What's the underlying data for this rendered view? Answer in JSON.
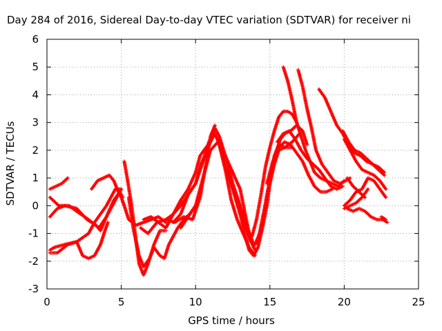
{
  "chart_data": {
    "type": "scatter",
    "title": "Day 284 of 2016, Sidereal Day-to-day VTEC variation (SDTVAR) for receiver ni",
    "xlabel": "GPS time / hours",
    "ylabel": "SDTVAR / TECUs",
    "xlim": [
      0,
      25
    ],
    "ylim": [
      -3,
      6
    ],
    "xticks": [
      "0",
      "5",
      "10",
      "15",
      "20",
      "25"
    ],
    "yticks": [
      "-3",
      "-2",
      "-1",
      "0",
      "1",
      "2",
      "3",
      "4",
      "5",
      "6"
    ],
    "grid": true,
    "legend": "none",
    "marker": "+",
    "color": "#ff0000",
    "series": [
      {
        "x": [
          0.2,
          0.6,
          1.0,
          1.4
        ],
        "y": [
          0.6,
          0.7,
          0.8,
          1.0
        ]
      },
      {
        "x": [
          0.2,
          0.8,
          1.5,
          2.0,
          2.8,
          3.5,
          4.0,
          4.5,
          4.9,
          5.1
        ],
        "y": [
          0.3,
          0.0,
          0.0,
          -0.2,
          -0.5,
          -0.8,
          -0.4,
          0.2,
          0.5,
          0.3
        ]
      },
      {
        "x": [
          0.2,
          0.7,
          1.2,
          2.0,
          2.7,
          3.3,
          3.6,
          4.0,
          4.3,
          4.7,
          5.0
        ],
        "y": [
          -0.4,
          -0.1,
          0.0,
          -0.1,
          -0.5,
          -0.7,
          -0.9,
          -0.4,
          -0.1,
          0.3,
          0.6
        ]
      },
      {
        "x": [
          0.2,
          0.5,
          1.2,
          2.0,
          2.8,
          3.2,
          3.6,
          4.0,
          4.3,
          4.6,
          5.0
        ],
        "y": [
          -1.6,
          -1.5,
          -1.4,
          -1.3,
          -1.0,
          -0.6,
          -0.3,
          0.0,
          0.3,
          0.6,
          0.6
        ]
      },
      {
        "x": [
          0.2,
          0.7,
          1.4,
          2.0,
          2.4,
          2.8,
          3.2,
          3.6,
          3.9,
          4.1
        ],
        "y": [
          -1.7,
          -1.7,
          -1.4,
          -1.3,
          -1.8,
          -1.9,
          -1.8,
          -1.4,
          -0.9,
          -0.6
        ]
      },
      {
        "x": [
          3.0,
          3.4,
          4.2,
          4.5,
          4.8,
          5.0,
          5.2,
          5.5,
          6.0,
          6.5,
          7.0,
          7.5,
          8.0
        ],
        "y": [
          0.6,
          0.9,
          1.1,
          0.9,
          0.5,
          0.3,
          0.0,
          -0.5,
          -0.7,
          -0.6,
          -0.5,
          -0.4,
          -0.6
        ]
      },
      {
        "x": [
          5.2,
          5.4,
          5.7,
          6.0,
          6.2,
          6.5,
          6.8,
          7.2,
          7.6,
          8.0
        ],
        "y": [
          1.6,
          1.0,
          0.0,
          -1.3,
          -2.1,
          -2.5,
          -2.1,
          -1.4,
          -0.9,
          -0.9
        ]
      },
      {
        "x": [
          5.5,
          5.8,
          6.2,
          6.5,
          6.9,
          7.2,
          7.6,
          7.9,
          8.2,
          8.8,
          9.2,
          9.6,
          10.0
        ],
        "y": [
          0.3,
          -0.8,
          -1.8,
          -2.2,
          -1.9,
          -1.5,
          -1.8,
          -1.9,
          -1.4,
          -0.8,
          -0.5,
          -0.3,
          0.0
        ]
      },
      {
        "x": [
          6.3,
          6.8,
          7.4,
          8.0,
          8.6,
          9.2,
          9.8,
          10.3,
          10.7,
          11.0,
          11.3
        ],
        "y": [
          -0.8,
          -1.0,
          -0.6,
          -0.5,
          -0.6,
          -0.4,
          -0.5,
          0.3,
          1.5,
          2.5,
          2.9
        ]
      },
      {
        "x": [
          6.5,
          7.0,
          7.5,
          8.0,
          8.5,
          9.0,
          9.5,
          10.0,
          10.3,
          10.6,
          10.9,
          11.2
        ],
        "y": [
          -0.5,
          -0.4,
          -0.6,
          -0.8,
          -0.3,
          0.0,
          0.4,
          0.8,
          1.4,
          1.8,
          2.3,
          2.6
        ]
      },
      {
        "x": [
          8.0,
          8.5,
          9.0,
          9.5,
          10.0,
          10.3,
          10.7,
          11.0,
          11.3,
          11.6,
          12.0,
          12.4,
          12.8,
          13.2,
          13.6,
          14.0
        ],
        "y": [
          -0.5,
          -0.3,
          0.2,
          0.6,
          1.2,
          1.8,
          2.1,
          2.3,
          2.6,
          2.2,
          1.3,
          0.2,
          -0.5,
          -1.0,
          -1.5,
          -1.8
        ]
      },
      {
        "x": [
          8.5,
          9.0,
          9.5,
          10.0,
          10.5,
          11.0,
          11.3,
          11.6,
          12.0,
          12.5,
          13.0,
          13.3,
          13.6,
          13.9
        ],
        "y": [
          -0.6,
          -0.3,
          0.4,
          0.8,
          1.6,
          2.3,
          2.8,
          2.5,
          1.8,
          1.2,
          0.6,
          -0.2,
          -1.0,
          -1.5
        ]
      },
      {
        "x": [
          9.0,
          9.5,
          10.0,
          10.5,
          11.0,
          11.5,
          12.0,
          12.5,
          13.0,
          13.5,
          14.0
        ],
        "y": [
          -0.8,
          -0.4,
          0.0,
          1.0,
          2.0,
          2.3,
          1.8,
          0.8,
          0.0,
          -1.0,
          -1.6
        ]
      },
      {
        "x": [
          11.5,
          12.0,
          12.5,
          13.0,
          13.3,
          13.6,
          13.9,
          14.2,
          14.5,
          14.8,
          15.0,
          15.3,
          15.6,
          16.0,
          16.5,
          17.0
        ],
        "y": [
          2.4,
          1.4,
          0.6,
          -0.3,
          -1.0,
          -1.6,
          -1.8,
          -1.5,
          -0.8,
          0.0,
          0.8,
          1.8,
          2.2,
          2.1,
          2.3,
          2.6
        ]
      },
      {
        "x": [
          12.2,
          12.6,
          13.0,
          13.4,
          13.7,
          14.0,
          14.3,
          14.6,
          15.0,
          15.3,
          15.6,
          16.0,
          16.5
        ],
        "y": [
          1.2,
          0.5,
          -0.3,
          -0.8,
          -1.3,
          -1.4,
          -1.0,
          -0.2,
          0.8,
          1.5,
          2.0,
          2.1,
          2.1
        ]
      },
      {
        "x": [
          13.2,
          13.5,
          13.9,
          14.2,
          14.5,
          14.8,
          15.1,
          15.4,
          15.7,
          16.0,
          16.4,
          16.8,
          17.2,
          17.5
        ],
        "y": [
          -0.2,
          -0.8,
          -1.4,
          -1.3,
          -0.6,
          0.4,
          1.2,
          1.9,
          2.4,
          2.6,
          2.7,
          2.9,
          2.7,
          2.2
        ]
      },
      {
        "x": [
          13.8,
          14.1,
          14.4,
          14.7,
          15.0,
          15.3,
          15.6,
          15.9,
          16.2,
          16.5,
          16.8
        ],
        "y": [
          -1.1,
          -0.5,
          0.4,
          1.4,
          2.1,
          2.7,
          3.2,
          3.4,
          3.4,
          3.3,
          3.0
        ]
      },
      {
        "x": [
          14.8,
          15.2,
          15.6,
          16.0,
          16.4,
          16.8,
          17.2,
          17.6,
          18.0,
          18.4,
          18.8,
          19.2
        ],
        "y": [
          0.8,
          1.6,
          2.1,
          2.3,
          2.2,
          1.9,
          1.6,
          1.1,
          0.7,
          0.5,
          0.5,
          0.6
        ]
      },
      {
        "x": [
          15.5,
          15.9,
          16.3,
          16.7,
          17.1,
          17.5,
          17.9,
          18.3,
          18.7,
          19.1,
          19.5,
          19.9
        ],
        "y": [
          2.3,
          2.6,
          2.7,
          2.4,
          2.0,
          1.7,
          1.5,
          1.3,
          1.0,
          0.7,
          0.6,
          0.7
        ]
      },
      {
        "x": [
          15.9,
          16.2,
          16.5,
          16.8,
          17.1,
          17.4,
          17.7,
          18.0,
          18.4,
          18.8,
          19.2,
          19.6,
          20.0
        ],
        "y": [
          5.0,
          4.5,
          3.8,
          3.0,
          2.5,
          2.0,
          1.6,
          1.2,
          1.0,
          0.9,
          0.8,
          0.7,
          0.9
        ]
      },
      {
        "x": [
          16.9,
          17.2,
          17.5,
          17.8,
          18.1,
          18.5,
          18.9,
          19.3,
          19.7,
          20.1,
          20.4
        ],
        "y": [
          4.9,
          4.3,
          3.5,
          2.8,
          2.0,
          1.5,
          1.2,
          0.9,
          0.8,
          0.9,
          1.0
        ]
      },
      {
        "x": [
          18.3,
          18.7,
          19.1,
          19.5,
          19.9,
          20.3,
          20.7,
          21.1,
          21.5,
          21.9,
          22.3,
          22.7
        ],
        "y": [
          4.2,
          3.9,
          3.4,
          2.9,
          2.6,
          2.2,
          1.9,
          1.8,
          1.6,
          1.5,
          1.4,
          1.2
        ]
      },
      {
        "x": [
          19.9,
          20.3,
          20.7,
          21.1,
          21.5,
          21.9,
          22.3,
          22.7
        ],
        "y": [
          2.7,
          2.3,
          2.0,
          1.9,
          1.7,
          1.5,
          1.3,
          1.1
        ]
      },
      {
        "x": [
          20.0,
          20.4,
          20.8,
          21.2,
          21.6,
          22.0,
          22.4,
          22.8
        ],
        "y": [
          2.4,
          2.0,
          1.6,
          1.3,
          1.2,
          1.1,
          0.9,
          0.6
        ]
      },
      {
        "x": [
          20.0,
          20.4,
          20.8,
          21.2,
          21.6,
          22.0,
          22.4,
          22.8
        ],
        "y": [
          0.0,
          0.2,
          0.5,
          0.6,
          1.0,
          0.9,
          0.6,
          0.3
        ]
      },
      {
        "x": [
          20.2,
          20.6,
          21.0,
          21.4
        ],
        "y": [
          1.0,
          0.7,
          0.5,
          0.3
        ]
      },
      {
        "x": [
          20.0,
          20.4,
          20.8,
          21.2,
          21.6
        ],
        "y": [
          -0.1,
          0.0,
          0.1,
          0.3,
          0.6
        ]
      },
      {
        "x": [
          20.2,
          20.6,
          21.0,
          21.4,
          21.8,
          22.2,
          22.6,
          22.9
        ],
        "y": [
          -0.1,
          -0.2,
          -0.1,
          -0.2,
          -0.4,
          -0.5,
          -0.5,
          -0.6
        ]
      },
      {
        "x": [
          22.5,
          22.8
        ],
        "y": [
          -0.4,
          -0.5
        ]
      }
    ]
  }
}
